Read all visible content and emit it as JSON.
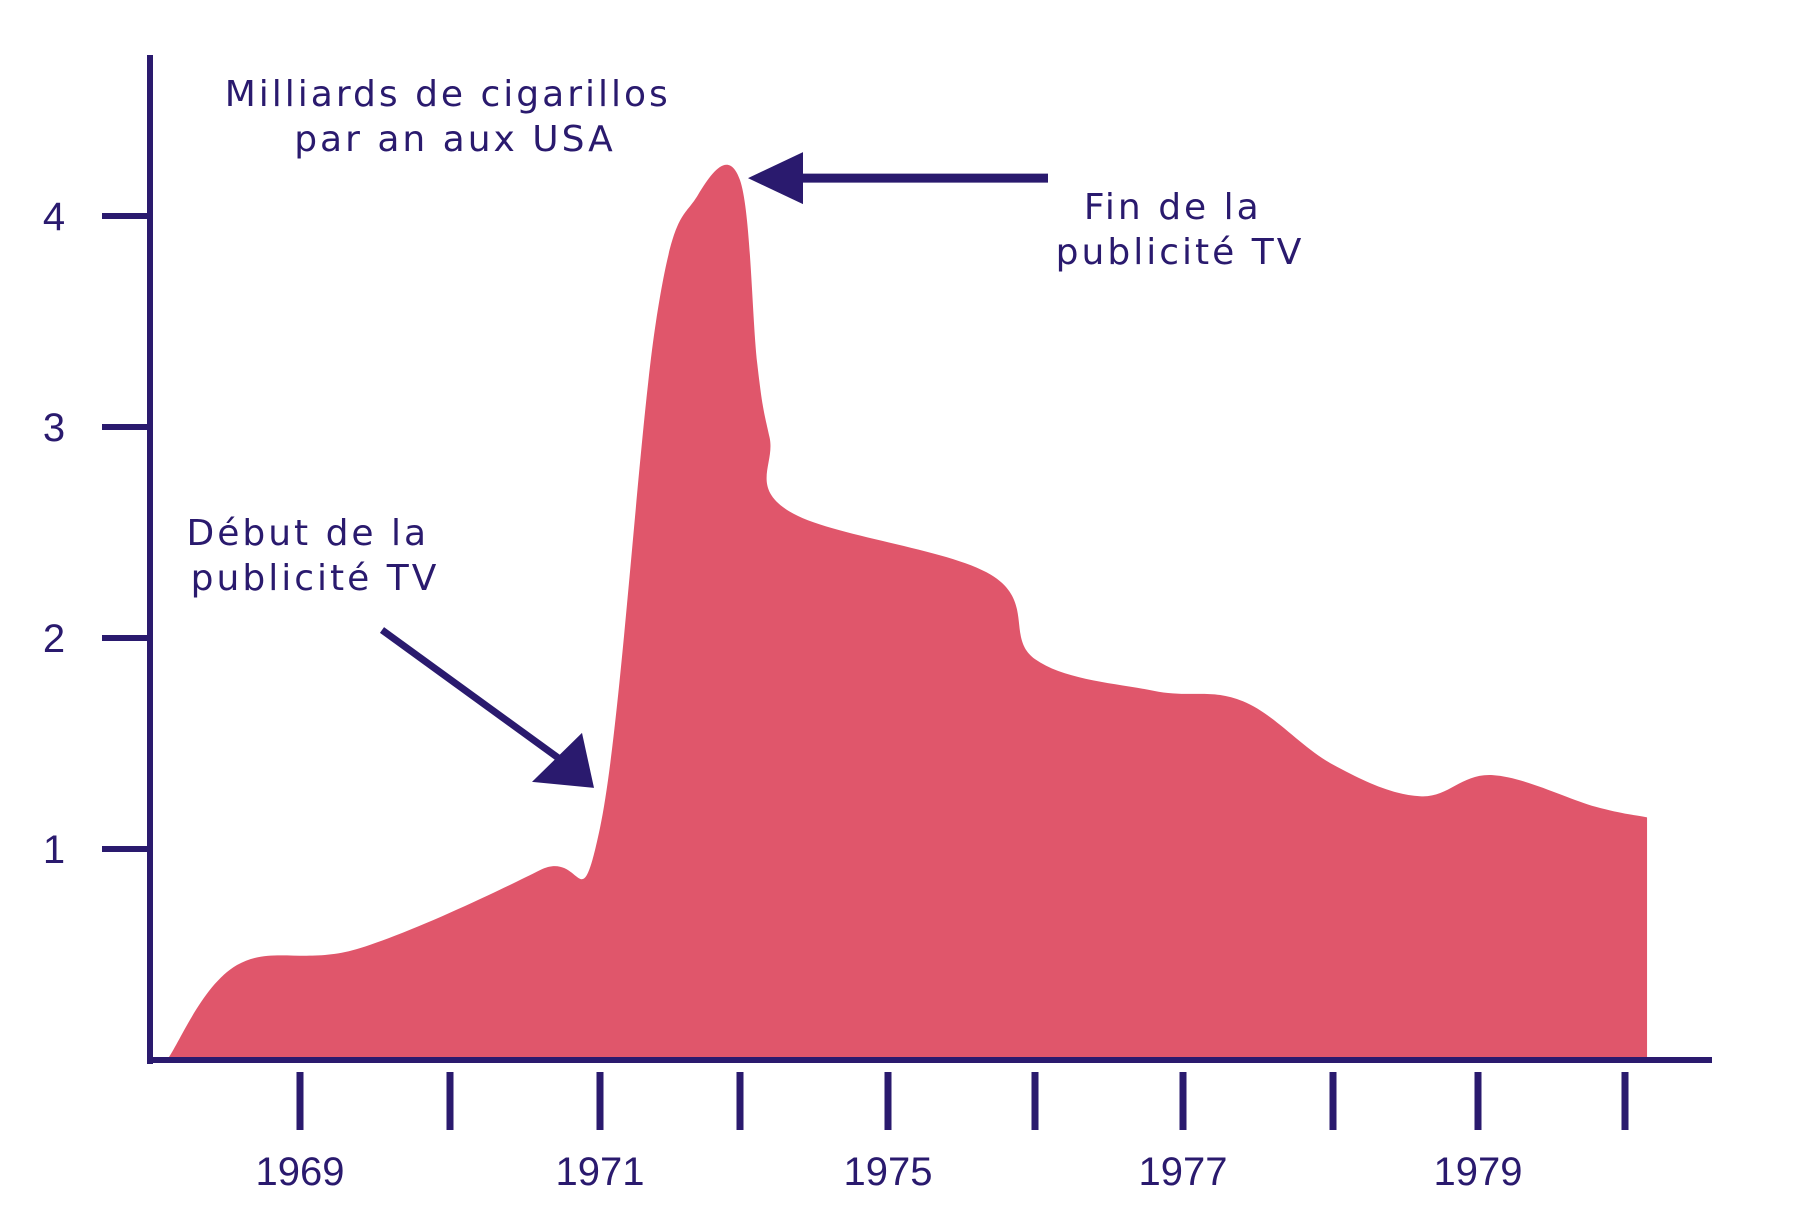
{
  "chart_data": {
    "type": "area",
    "title": "Milliards de cigarillos par an aux USA",
    "title_lines": [
      "Milliards de cigarillos",
      "par an aux USA"
    ],
    "xlabel": "",
    "ylabel": "",
    "ylim": [
      0,
      4.5
    ],
    "yticks": [
      1,
      2,
      3,
      4
    ],
    "xticks": [
      1969,
      1970,
      1971,
      1972,
      1975,
      1976,
      1977,
      1978,
      1979,
      1980
    ],
    "xtick_labels": [
      "1969",
      "",
      "1971",
      "",
      "1975",
      "",
      "1977",
      "",
      "1979",
      ""
    ],
    "x": [
      1968.05,
      1968.55,
      1969.4,
      1970.6,
      1971.0,
      1971.4,
      1971.7,
      1972.0,
      1972.35,
      1972.6,
      1973.0,
      1975.7,
      1976.0,
      1976.8,
      1977.4,
      1978.0,
      1978.6,
      1979.1,
      1979.8,
      1980.15
    ],
    "values": [
      0.0,
      0.45,
      0.53,
      0.9,
      1.1,
      3.5,
      4.1,
      4.17,
      3.3,
      2.95,
      2.6,
      2.3,
      1.9,
      1.75,
      1.7,
      1.4,
      1.25,
      1.35,
      1.2,
      1.15
    ],
    "grid": false,
    "colors": {
      "area": "#e0566b",
      "axis": "#2a1a6e",
      "text": "#2a1a6e"
    },
    "annotations": [
      {
        "lines": [
          "Début de la",
          "publicité TV"
        ],
        "arrow_to_x": 1971.0,
        "arrow_to_y": 1.1
      },
      {
        "lines": [
          "Fin de la",
          "publicité TV"
        ],
        "arrow_to_x": 1972.0,
        "arrow_to_y": 4.17
      }
    ]
  }
}
